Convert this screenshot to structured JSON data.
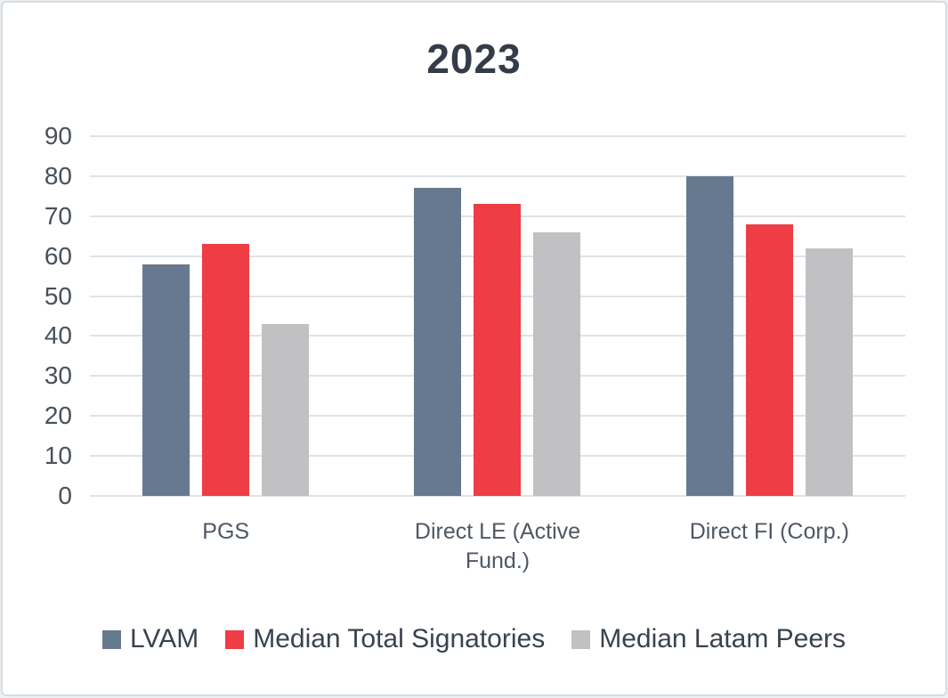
{
  "title": "2023",
  "chart_data": {
    "type": "bar",
    "title": "2023",
    "categories": [
      "PGS",
      "Direct LE (Active Fund.)",
      "Direct FI (Corp.)"
    ],
    "series": [
      {
        "name": "LVAM",
        "color": "#66798E",
        "values": [
          58,
          77,
          80
        ]
      },
      {
        "name": "Median Total Signatories",
        "color": "#EE3D45",
        "values": [
          63,
          73,
          68
        ]
      },
      {
        "name": "Median Latam Peers",
        "color": "#C1C0C2",
        "values": [
          43,
          66,
          62
        ]
      }
    ],
    "xlabel": "",
    "ylabel": "",
    "ylim": [
      0,
      90
    ],
    "ytick_step": 10,
    "ytick_labels": [
      "0",
      "10",
      "20",
      "30",
      "40",
      "50",
      "60",
      "70",
      "80",
      "90"
    ],
    "grid": true,
    "legend_position": "bottom"
  },
  "colors": {
    "title_text": "#333C48",
    "axis_text": "#475059",
    "category_text": "#4E5863",
    "legend_text": "#39424E",
    "gridline": "#DDE3E9",
    "card_border": "#D6DCE2",
    "background": "#FFFFFF"
  }
}
